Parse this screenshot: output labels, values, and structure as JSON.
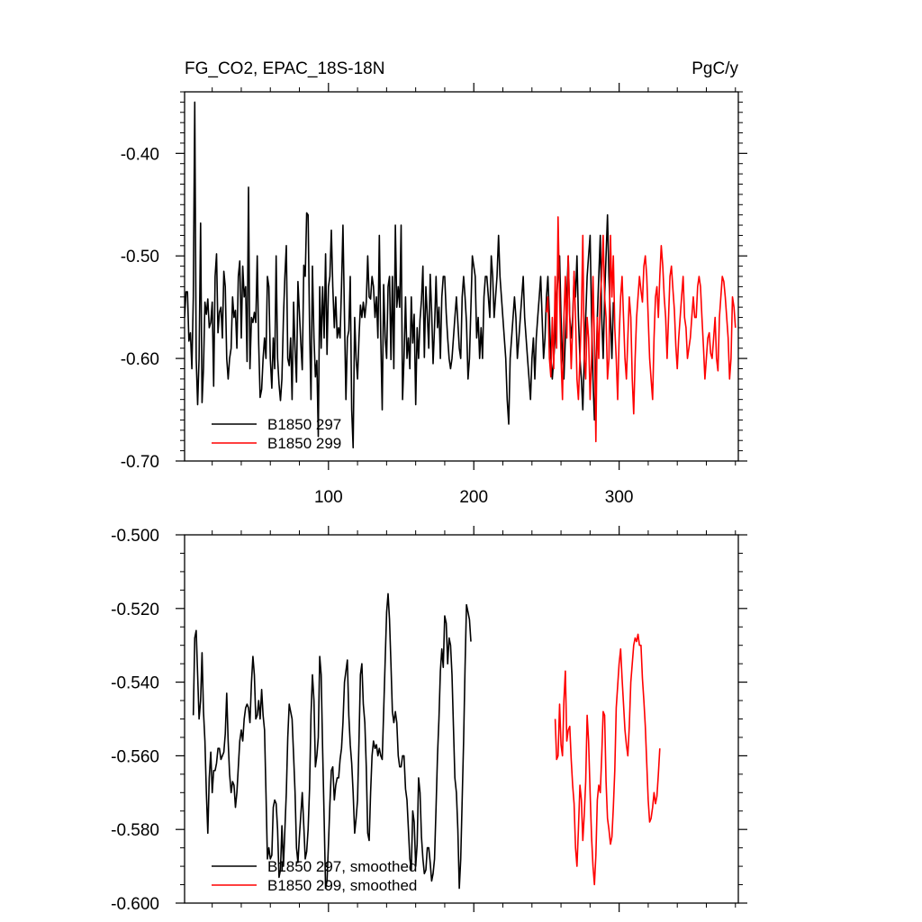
{
  "chart_data": [
    {
      "type": "line",
      "title": "FG_CO2, EPAC_18S-18N",
      "units": "PgC/y",
      "xlim": [
        1,
        382
      ],
      "ylim": [
        -0.7,
        -0.34
      ],
      "x_ticks": [
        100,
        200,
        300
      ],
      "x_tick_labels": [
        "100",
        "200",
        "300"
      ],
      "y_ticks": [
        -0.4,
        -0.5,
        -0.6,
        -0.7
      ],
      "y_tick_labels": [
        "-0.40",
        "-0.50",
        "-0.60",
        "-0.70"
      ],
      "legend_position": "bottom-left",
      "series": [
        {
          "name": "B1850 297",
          "color": "#000000",
          "x_start": 1,
          "values": [
            -0.56,
            -0.535,
            -0.535,
            -0.583,
            -0.575,
            -0.61,
            -0.54,
            -0.35,
            -0.6,
            -0.645,
            -0.6,
            -0.468,
            -0.643,
            -0.61,
            -0.545,
            -0.557,
            -0.542,
            -0.57,
            -0.565,
            -0.545,
            -0.627,
            -0.52,
            -0.498,
            -0.575,
            -0.555,
            -0.55,
            -0.58,
            -0.515,
            -0.53,
            -0.6,
            -0.62,
            -0.6,
            -0.59,
            -0.54,
            -0.56,
            -0.553,
            -0.59,
            -0.52,
            -0.505,
            -0.58,
            -0.51,
            -0.54,
            -0.53,
            -0.603,
            -0.433,
            -0.61,
            -0.56,
            -0.565,
            -0.555,
            -0.565,
            -0.5,
            -0.585,
            -0.638,
            -0.63,
            -0.6,
            -0.58,
            -0.6,
            -0.52,
            -0.53,
            -0.6,
            -0.629,
            -0.58,
            -0.61,
            -0.5,
            -0.6,
            -0.625,
            -0.641,
            -0.62,
            -0.56,
            -0.52,
            -0.49,
            -0.6,
            -0.607,
            -0.58,
            -0.64,
            -0.545,
            -0.591,
            -0.623,
            -0.525,
            -0.555,
            -0.585,
            -0.611,
            -0.509,
            -0.52,
            -0.458,
            -0.46,
            -0.568,
            -0.64,
            -0.51,
            -0.58,
            -0.618,
            -0.602,
            -0.676,
            -0.53,
            -0.59,
            -0.53,
            -0.58,
            -0.498,
            -0.596,
            -0.53,
            -0.52,
            -0.475,
            -0.53,
            -0.57,
            -0.54,
            -0.58,
            -0.57,
            -0.58,
            -0.53,
            -0.47,
            -0.56,
            -0.64,
            -0.58,
            -0.573,
            -0.52,
            -0.65,
            -0.687,
            -0.56,
            -0.6,
            -0.62,
            -0.58,
            -0.548,
            -0.56,
            -0.545,
            -0.56,
            -0.545,
            -0.5,
            -0.54,
            -0.542,
            -0.52,
            -0.53,
            -0.56,
            -0.54,
            -0.58,
            -0.48,
            -0.58,
            -0.65,
            -0.528,
            -0.58,
            -0.6,
            -0.53,
            -0.52,
            -0.601,
            -0.52,
            -0.61,
            -0.47,
            -0.55,
            -0.53,
            -0.55,
            -0.47,
            -0.64,
            -0.6,
            -0.54,
            -0.6,
            -0.58,
            -0.61,
            -0.54,
            -0.585,
            -0.557,
            -0.645,
            -0.57,
            -0.6,
            -0.562,
            -0.543,
            -0.51,
            -0.599,
            -0.53,
            -0.558,
            -0.59,
            -0.518,
            -0.555,
            -0.605,
            -0.57,
            -0.52,
            -0.57,
            -0.55,
            -0.6,
            -0.54,
            -0.52,
            -0.52,
            -0.556,
            -0.58,
            -0.6,
            -0.61,
            -0.6,
            -0.58,
            -0.56,
            -0.54,
            -0.565,
            -0.59,
            -0.6,
            -0.54,
            -0.52,
            -0.54,
            -0.565,
            -0.62,
            -0.6,
            -0.55,
            -0.5,
            -0.51,
            -0.52,
            -0.58,
            -0.56,
            -0.6,
            -0.57,
            -0.6,
            -0.54,
            -0.52,
            -0.52,
            -0.54,
            -0.56,
            -0.5,
            -0.52,
            -0.56,
            -0.54,
            -0.52,
            -0.48,
            -0.52,
            -0.54,
            -0.56,
            -0.58,
            -0.6,
            -0.64,
            -0.664,
            -0.6,
            -0.58,
            -0.56,
            -0.54,
            -0.56,
            -0.6,
            -0.58,
            -0.56,
            -0.54,
            -0.52,
            -0.56,
            -0.58,
            -0.6,
            -0.62,
            -0.64,
            -0.6,
            -0.58,
            -0.62,
            -0.58,
            -0.56,
            -0.54,
            -0.52,
            -0.56,
            -0.6,
            -0.58,
            -0.54,
            -0.52,
            -0.56,
            -0.6,
            -0.62,
            -0.6,
            -0.58,
            -0.54,
            -0.52,
            -0.5,
            -0.56,
            -0.6,
            -0.62,
            -0.58,
            -0.54,
            -0.5,
            -0.56,
            -0.58,
            -0.56,
            -0.52,
            -0.54,
            -0.5,
            -0.56,
            -0.6,
            -0.62,
            -0.65,
            -0.6,
            -0.56,
            -0.52,
            -0.5,
            -0.48,
            -0.56,
            -0.62,
            -0.66,
            -0.62,
            -0.56,
            -0.52,
            -0.48,
            -0.56,
            -0.6,
            -0.54,
            -0.5,
            -0.46,
            -0.52,
            -0.56,
            -0.6,
            -0.545
          ]
        },
        {
          "name": "B1850 299",
          "color": "#ff0000",
          "x_start": 250,
          "values": [
            -0.555,
            -0.54,
            -0.6,
            -0.618,
            -0.56,
            -0.61,
            -0.52,
            -0.59,
            -0.462,
            -0.54,
            -0.6,
            -0.64,
            -0.56,
            -0.52,
            -0.58,
            -0.5,
            -0.56,
            -0.61,
            -0.57,
            -0.515,
            -0.56,
            -0.62,
            -0.64,
            -0.6,
            -0.558,
            -0.48,
            -0.6,
            -0.62,
            -0.56,
            -0.58,
            -0.64,
            -0.6,
            -0.52,
            -0.582,
            -0.681,
            -0.56,
            -0.6,
            -0.54,
            -0.52,
            -0.48,
            -0.54,
            -0.56,
            -0.62,
            -0.6,
            -0.48,
            -0.54,
            -0.5,
            -0.57,
            -0.6,
            -0.64,
            -0.58,
            -0.54,
            -0.52,
            -0.56,
            -0.6,
            -0.62,
            -0.58,
            -0.54,
            -0.56,
            -0.62,
            -0.654,
            -0.6,
            -0.56,
            -0.54,
            -0.52,
            -0.534,
            -0.545,
            -0.51,
            -0.5,
            -0.52,
            -0.56,
            -0.6,
            -0.62,
            -0.64,
            -0.58,
            -0.54,
            -0.53,
            -0.56,
            -0.52,
            -0.49,
            -0.51,
            -0.54,
            -0.56,
            -0.6,
            -0.56,
            -0.52,
            -0.51,
            -0.533,
            -0.553,
            -0.588,
            -0.61,
            -0.58,
            -0.56,
            -0.54,
            -0.52,
            -0.56,
            -0.57,
            -0.6,
            -0.59,
            -0.58,
            -0.56,
            -0.54,
            -0.56,
            -0.56,
            -0.53,
            -0.52,
            -0.53,
            -0.56,
            -0.589,
            -0.62,
            -0.6,
            -0.58,
            -0.575,
            -0.595,
            -0.6,
            -0.58,
            -0.56,
            -0.6,
            -0.612,
            -0.56,
            -0.54,
            -0.52,
            -0.525,
            -0.54,
            -0.56,
            -0.58,
            -0.62,
            -0.6,
            -0.54,
            -0.55,
            -0.57
          ]
        }
      ]
    },
    {
      "type": "line",
      "title": "",
      "xlim": [
        1,
        382
      ],
      "ylim": [
        -0.6,
        -0.5
      ],
      "x_ticks": [
        100,
        200,
        300
      ],
      "y_ticks": [
        -0.5,
        -0.52,
        -0.54,
        -0.56,
        -0.58,
        -0.6
      ],
      "y_tick_labels": [
        "-0.500",
        "-0.520",
        "-0.540",
        "-0.560",
        "-0.580",
        "-0.600"
      ],
      "legend_position": "bottom-left",
      "series": [
        {
          "name": "B1850 297, smoothed",
          "color": "#000000",
          "x_start": 7,
          "values": [
            -0.549,
            -0.528,
            -0.526,
            -0.538,
            -0.55,
            -0.545,
            -0.532,
            -0.548,
            -0.556,
            -0.57,
            -0.581,
            -0.566,
            -0.559,
            -0.57,
            -0.564,
            -0.564,
            -0.562,
            -0.558,
            -0.558,
            -0.561,
            -0.56,
            -0.559,
            -0.554,
            -0.543,
            -0.556,
            -0.565,
            -0.57,
            -0.567,
            -0.568,
            -0.574,
            -0.57,
            -0.563,
            -0.556,
            -0.553,
            -0.556,
            -0.55,
            -0.547,
            -0.546,
            -0.547,
            -0.551,
            -0.54,
            -0.533,
            -0.538,
            -0.55,
            -0.549,
            -0.545,
            -0.55,
            -0.542,
            -0.549,
            -0.553,
            -0.57,
            -0.588,
            -0.585,
            -0.588,
            -0.587,
            -0.574,
            -0.572,
            -0.573,
            -0.58,
            -0.593,
            -0.591,
            -0.579,
            -0.59,
            -0.58,
            -0.57,
            -0.555,
            -0.546,
            -0.548,
            -0.55,
            -0.56,
            -0.57,
            -0.585,
            -0.589,
            -0.582,
            -0.576,
            -0.57,
            -0.579,
            -0.588,
            -0.586,
            -0.58,
            -0.569,
            -0.549,
            -0.538,
            -0.545,
            -0.563,
            -0.56,
            -0.555,
            -0.533,
            -0.538,
            -0.558,
            -0.577,
            -0.596,
            -0.594,
            -0.584,
            -0.573,
            -0.564,
            -0.563,
            -0.572,
            -0.568,
            -0.566,
            -0.566,
            -0.561,
            -0.558,
            -0.551,
            -0.54,
            -0.537,
            -0.534,
            -0.549,
            -0.557,
            -0.562,
            -0.57,
            -0.581,
            -0.577,
            -0.572,
            -0.556,
            -0.538,
            -0.535,
            -0.546,
            -0.551,
            -0.563,
            -0.581,
            -0.583,
            -0.57,
            -0.56,
            -0.556,
            -0.558,
            -0.557,
            -0.56,
            -0.558,
            -0.56,
            -0.561,
            -0.548,
            -0.534,
            -0.521,
            -0.516,
            -0.523,
            -0.535,
            -0.548,
            -0.551,
            -0.548,
            -0.551,
            -0.56,
            -0.563,
            -0.563,
            -0.56,
            -0.56,
            -0.569,
            -0.572,
            -0.58,
            -0.588,
            -0.591,
            -0.575,
            -0.578,
            -0.59,
            -0.584,
            -0.566,
            -0.57,
            -0.582,
            -0.588,
            -0.592,
            -0.591,
            -0.585,
            -0.585,
            -0.589,
            -0.594,
            -0.592,
            -0.588,
            -0.574,
            -0.56,
            -0.55,
            -0.537,
            -0.531,
            -0.536,
            -0.522,
            -0.524,
            -0.535,
            -0.528,
            -0.53,
            -0.538,
            -0.552,
            -0.566,
            -0.57,
            -0.58,
            -0.596,
            -0.588,
            -0.572,
            -0.556,
            -0.536,
            -0.519,
            -0.521,
            -0.523,
            -0.529
          ]
        },
        {
          "name": "B1850 299, smoothed",
          "color": "#ff0000",
          "x_start": 256,
          "values": [
            -0.55,
            -0.561,
            -0.56,
            -0.546,
            -0.557,
            -0.56,
            -0.545,
            -0.537,
            -0.556,
            -0.553,
            -0.552,
            -0.561,
            -0.568,
            -0.573,
            -0.585,
            -0.59,
            -0.58,
            -0.568,
            -0.572,
            -0.583,
            -0.576,
            -0.567,
            -0.549,
            -0.556,
            -0.57,
            -0.582,
            -0.59,
            -0.595,
            -0.587,
            -0.572,
            -0.568,
            -0.57,
            -0.56,
            -0.548,
            -0.549,
            -0.567,
            -0.577,
            -0.58,
            -0.584,
            -0.582,
            -0.574,
            -0.564,
            -0.547,
            -0.541,
            -0.535,
            -0.531,
            -0.539,
            -0.546,
            -0.553,
            -0.557,
            -0.56,
            -0.552,
            -0.54,
            -0.535,
            -0.53,
            -0.528,
            -0.529,
            -0.527,
            -0.53,
            -0.53,
            -0.539,
            -0.545,
            -0.552,
            -0.562,
            -0.572,
            -0.578,
            -0.577,
            -0.574,
            -0.57,
            -0.573,
            -0.571,
            -0.565,
            -0.558
          ]
        }
      ]
    }
  ]
}
